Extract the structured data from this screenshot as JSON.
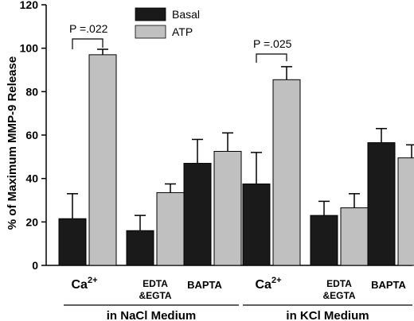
{
  "chart_data": {
    "type": "bar",
    "ylabel": "% of Maximum MMP-9 Release",
    "ylim": [
      0,
      120
    ],
    "yticks": [
      "0",
      "20",
      "40",
      "60",
      "80",
      "100",
      "120"
    ],
    "categories": [
      "Ca2+",
      "EDTA &EGTA",
      "BAPTA",
      "Ca2+",
      "EDTA &EGTA",
      "BAPTA"
    ],
    "category_labels": [
      {
        "main": "Ca",
        "sup": "2+"
      },
      {
        "line1": "EDTA",
        "line2": "&EGTA"
      },
      {
        "main": "BAPTA"
      },
      {
        "main": "Ca",
        "sup": "2+"
      },
      {
        "line1": "EDTA",
        "line2": "&EGTA"
      },
      {
        "main": "BAPTA"
      }
    ],
    "groups": [
      {
        "label": "in NaCl Medium",
        "categories": [
          0,
          1,
          2
        ]
      },
      {
        "label": "in KCl Medium",
        "categories": [
          3,
          4,
          5
        ]
      }
    ],
    "series": [
      {
        "name": "Basal",
        "color": "#1a1a1a",
        "values": [
          21.5,
          16.0,
          47.0,
          37.5,
          23.0,
          56.5
        ],
        "errors": [
          11.5,
          7.0,
          11.0,
          14.5,
          6.5,
          6.5
        ]
      },
      {
        "name": "ATP",
        "color": "#c0c0c0",
        "values": [
          97.0,
          33.5,
          52.5,
          85.5,
          26.5,
          49.5
        ],
        "errors": [
          2.5,
          4.0,
          8.5,
          6.0,
          6.5,
          6.0
        ]
      }
    ],
    "annotations": [
      {
        "category": 0,
        "label": "P =.022"
      },
      {
        "category": 3,
        "label": "P =.025"
      }
    ],
    "legend": "top-center",
    "grid": false
  }
}
